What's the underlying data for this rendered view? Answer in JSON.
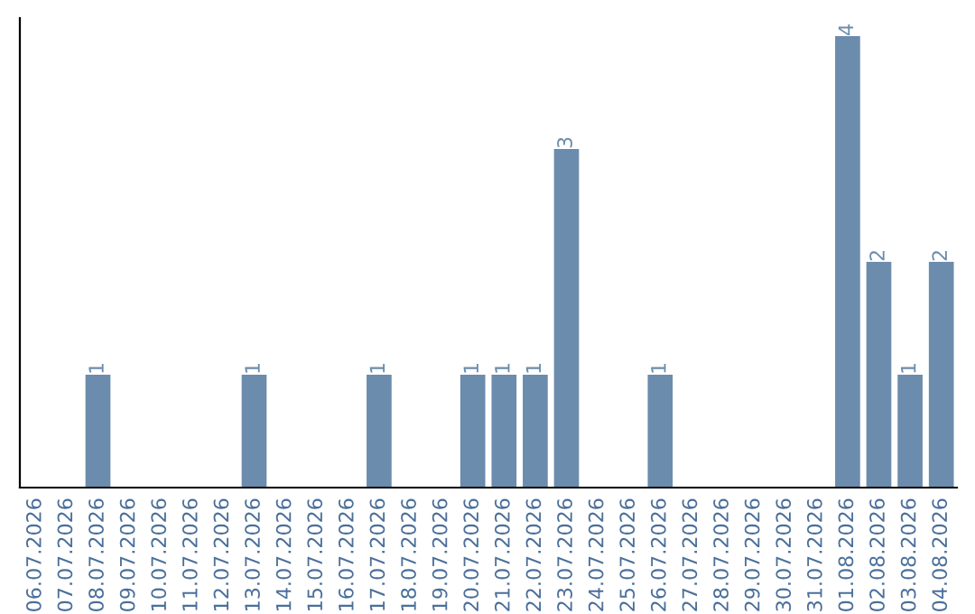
{
  "chart_data": {
    "type": "bar",
    "categories": [
      "06.07.2026",
      "07.07.2026",
      "08.07.2026",
      "09.07.2026",
      "10.07.2026",
      "11.07.2026",
      "12.07.2026",
      "13.07.2026",
      "14.07.2026",
      "15.07.2026",
      "16.07.2026",
      "17.07.2026",
      "18.07.2026",
      "19.07.2026",
      "20.07.2026",
      "21.07.2026",
      "22.07.2026",
      "23.07.2026",
      "24.07.2026",
      "25.07.2026",
      "26.07.2026",
      "27.07.2026",
      "28.07.2026",
      "29.07.2026",
      "30.07.2026",
      "31.07.2026",
      "01.08.2026",
      "02.08.2026",
      "03.08.2026",
      "04.08.2026"
    ],
    "values": [
      0,
      0,
      1,
      0,
      0,
      0,
      0,
      1,
      0,
      0,
      0,
      1,
      0,
      0,
      1,
      1,
      1,
      3,
      0,
      0,
      1,
      0,
      0,
      0,
      0,
      0,
      4,
      2,
      1,
      2
    ],
    "value_labels": [
      null,
      null,
      "1",
      null,
      null,
      null,
      null,
      "1",
      null,
      null,
      null,
      "1",
      null,
      null,
      "1",
      "1",
      "1",
      "3",
      null,
      null,
      "1",
      null,
      null,
      null,
      null,
      null,
      "4",
      "2",
      "1",
      "2"
    ],
    "color": "#6b8cac",
    "ylim": [
      0,
      4.16
    ],
    "tick_labels": "x",
    "grid": false,
    "legend": false
  }
}
